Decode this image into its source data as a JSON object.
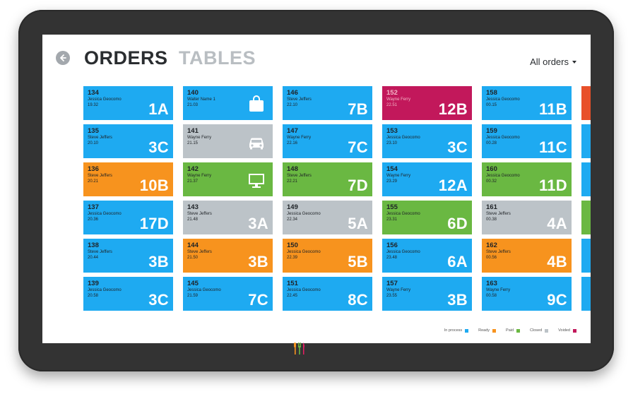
{
  "header": {
    "back_icon": "arrow-left-icon",
    "title_orders": "ORDERS",
    "title_tables": "TABLES",
    "filter_label": "All orders"
  },
  "colors": {
    "in_process": "#1eaaf1",
    "ready": "#f7931e",
    "paid": "#6ab842",
    "closed": "#bcc3c8",
    "voided": "#c2185b",
    "extra_red": "#e8502a"
  },
  "orders": [
    [
      {
        "number": "134",
        "waiter": "Jessica Geocomo",
        "time": "19.32",
        "table": "1A",
        "status": "in_process"
      },
      {
        "number": "135",
        "waiter": "Steve Jeffers",
        "time": "20.10",
        "table": "3C",
        "status": "in_process"
      },
      {
        "number": "136",
        "waiter": "Steve Jeffers",
        "time": "20.21",
        "table": "10B",
        "status": "ready"
      },
      {
        "number": "137",
        "waiter": "Jessica Geocomo",
        "time": "20.36",
        "table": "17D",
        "status": "in_process"
      },
      {
        "number": "138",
        "waiter": "Steve Jeffers",
        "time": "20.44",
        "table": "3B",
        "status": "in_process"
      },
      {
        "number": "139",
        "waiter": "Jessica Geocomo",
        "time": "20.58",
        "table": "3C",
        "status": "in_process"
      }
    ],
    [
      {
        "number": "140",
        "waiter": "Waiter Name 1",
        "time": "21.03",
        "table": "",
        "icon": "shopping-bag-icon",
        "status": "in_process"
      },
      {
        "number": "141",
        "waiter": "Wayne Ferry",
        "time": "21.15",
        "table": "",
        "icon": "car-icon",
        "status": "closed"
      },
      {
        "number": "142",
        "waiter": "Wayne Ferry",
        "time": "21.37",
        "table": "",
        "icon": "monitor-icon",
        "status": "paid"
      },
      {
        "number": "143",
        "waiter": "Steve Jeffers",
        "time": "21.48",
        "table": "3A",
        "status": "closed"
      },
      {
        "number": "144",
        "waiter": "Steve Jeffers",
        "time": "21.50",
        "table": "3B",
        "status": "ready"
      },
      {
        "number": "145",
        "waiter": "Jessica Geocomo",
        "time": "21.59",
        "table": "7C",
        "status": "in_process"
      }
    ],
    [
      {
        "number": "146",
        "waiter": "Steve Jeffers",
        "time": "22.10",
        "table": "7B",
        "status": "in_process"
      },
      {
        "number": "147",
        "waiter": "Wayne Ferry",
        "time": "22.16",
        "table": "7C",
        "status": "in_process"
      },
      {
        "number": "148",
        "waiter": "Steve Jeffers",
        "time": "22.21",
        "table": "7D",
        "status": "paid"
      },
      {
        "number": "149",
        "waiter": "Jessica Geocomo",
        "time": "22.34",
        "table": "5A",
        "status": "closed"
      },
      {
        "number": "150",
        "waiter": "Jessica Geocomo",
        "time": "22.39",
        "table": "5B",
        "status": "ready"
      },
      {
        "number": "151",
        "waiter": "Jessica Geocomo",
        "time": "22.45",
        "table": "8C",
        "status": "in_process"
      }
    ],
    [
      {
        "number": "152",
        "waiter": "Wayne Ferry",
        "time": "22.51",
        "table": "12B",
        "status": "voided"
      },
      {
        "number": "153",
        "waiter": "Jessica Geocomo",
        "time": "23.10",
        "table": "3C",
        "status": "in_process"
      },
      {
        "number": "154",
        "waiter": "Wayne Ferry",
        "time": "23.29",
        "table": "12A",
        "status": "in_process"
      },
      {
        "number": "155",
        "waiter": "Jessica Geocomo",
        "time": "23.31",
        "table": "6D",
        "status": "paid"
      },
      {
        "number": "156",
        "waiter": "Jessica Geocomo",
        "time": "23.48",
        "table": "6A",
        "status": "in_process"
      },
      {
        "number": "157",
        "waiter": "Wayne Ferry",
        "time": "23.55",
        "table": "3B",
        "status": "in_process"
      }
    ],
    [
      {
        "number": "158",
        "waiter": "Jessica Geocomo",
        "time": "00.15",
        "table": "11B",
        "status": "in_process"
      },
      {
        "number": "159",
        "waiter": "Jessica Geocomo",
        "time": "00.28",
        "table": "11C",
        "status": "in_process"
      },
      {
        "number": "160",
        "waiter": "Jessica Geocomo",
        "time": "00.32",
        "table": "11D",
        "status": "paid"
      },
      {
        "number": "161",
        "waiter": "Steve Jeffers",
        "time": "00.38",
        "table": "4A",
        "status": "closed"
      },
      {
        "number": "162",
        "waiter": "Steve Jeffers",
        "time": "00.56",
        "table": "4B",
        "status": "ready"
      },
      {
        "number": "163",
        "waiter": "Wayne Ferry",
        "time": "00.58",
        "table": "9C",
        "status": "in_process"
      }
    ]
  ],
  "edge_column": [
    "extra_red",
    "in_process",
    "in_process",
    "paid",
    "in_process",
    "in_process"
  ],
  "legend": [
    {
      "label": "In process",
      "status": "in_process"
    },
    {
      "label": "Ready",
      "status": "ready"
    },
    {
      "label": "Paid",
      "status": "paid"
    },
    {
      "label": "Closed",
      "status": "closed"
    },
    {
      "label": "Voided",
      "status": "voided"
    }
  ],
  "brand_icon": "utensils-logo-icon"
}
